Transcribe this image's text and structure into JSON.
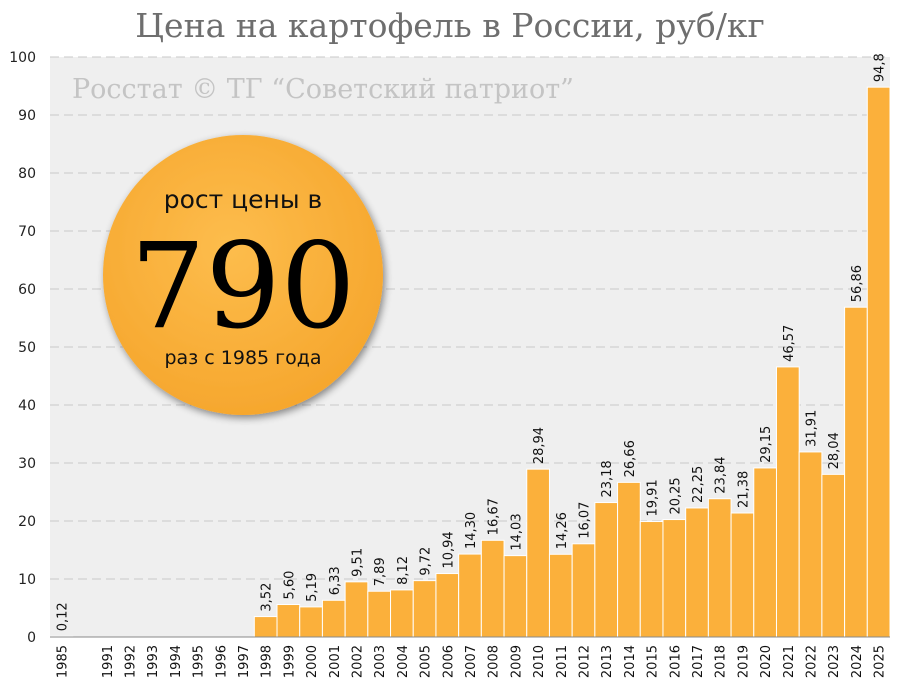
{
  "chart_data": {
    "type": "bar",
    "title": "Цена на картофель в России, руб/кг",
    "watermark": "Росстат © ТГ “Советский патриот”",
    "badge": {
      "top_text": "рост цены в",
      "big_number": "790",
      "bottom_text": "раз с 1985 года"
    },
    "categories": [
      "1985",
      "",
      "1991",
      "1992",
      "1993",
      "1994",
      "1995",
      "1996",
      "1997",
      "1998",
      "1999",
      "2000",
      "2001",
      "2002",
      "2003",
      "2004",
      "2005",
      "2006",
      "2007",
      "2008",
      "2009",
      "2010",
      "2011",
      "2012",
      "2013",
      "2014",
      "2015",
      "2016",
      "2017",
      "2018",
      "2019",
      "2020",
      "2021",
      "2022",
      "2023",
      "2024",
      "2025"
    ],
    "values": [
      0.12,
      null,
      null,
      null,
      null,
      null,
      null,
      null,
      null,
      3.52,
      5.6,
      5.19,
      6.33,
      9.51,
      7.89,
      8.12,
      9.72,
      10.94,
      14.3,
      16.67,
      14.03,
      28.94,
      14.26,
      16.07,
      23.18,
      26.66,
      19.91,
      20.25,
      22.25,
      23.84,
      21.38,
      29.15,
      46.57,
      31.91,
      28.04,
      56.86,
      94.8
    ],
    "value_labels": [
      "0,12",
      "",
      "",
      "",
      "",
      "",
      "",
      "",
      "",
      "3,52",
      "5,60",
      "5,19",
      "6,33",
      "9,51",
      "7,89",
      "8,12",
      "9,72",
      "10,94",
      "14,30",
      "16,67",
      "14,03",
      "28,94",
      "14,26",
      "16,07",
      "23,18",
      "26,66",
      "19,91",
      "20,25",
      "22,25",
      "23,84",
      "21,38",
      "29,15",
      "46,57",
      "31,91",
      "28,04",
      "56,86",
      "94,8"
    ],
    "ylim": [
      0,
      100
    ],
    "yticks": [
      "0",
      "10",
      "20",
      "30",
      "40",
      "50",
      "60",
      "70",
      "80",
      "90",
      "100"
    ],
    "grid": true,
    "colors": {
      "bar": "#FBB03B",
      "bar_edge": "#ffffff",
      "plot_bg": "#efefef",
      "grid": "#c8c8c8",
      "badge_fill": "#FBB03B",
      "watermark": "#c4c4c4",
      "title": "#6e6e6e"
    }
  }
}
